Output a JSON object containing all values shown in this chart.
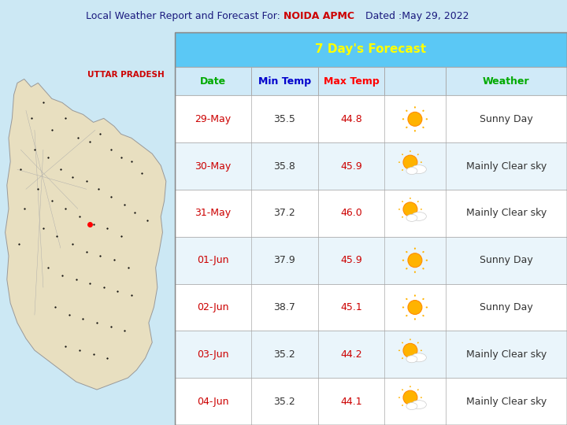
{
  "title_prefix": "Local Weather Report and Forecast For: ",
  "title_location": "NOIDA APMC",
  "title_suffix": "    Dated :May 29, 2022",
  "forecast_header": "7 Day's Forecast",
  "columns": [
    "Date",
    "Min Temp",
    "Max Temp",
    "",
    "Weather"
  ],
  "col_header_colors": [
    "#00aa00",
    "#0000cc",
    "#ff0000",
    "",
    "#00aa00"
  ],
  "rows": [
    {
      "date": "29-May",
      "min_temp": "35.5",
      "max_temp": "44.8",
      "weather": "Sunny Day",
      "icon_type": "sunny"
    },
    {
      "date": "30-May",
      "min_temp": "35.8",
      "max_temp": "45.9",
      "weather": "Mainly Clear sky",
      "icon_type": "partly_cloudy"
    },
    {
      "date": "31-May",
      "min_temp": "37.2",
      "max_temp": "46.0",
      "weather": "Mainly Clear sky",
      "icon_type": "partly_cloudy"
    },
    {
      "date": "01-Jun",
      "min_temp": "37.9",
      "max_temp": "45.9",
      "weather": "Sunny Day",
      "icon_type": "sunny"
    },
    {
      "date": "02-Jun",
      "min_temp": "38.7",
      "max_temp": "45.1",
      "weather": "Sunny Day",
      "icon_type": "sunny"
    },
    {
      "date": "03-Jun",
      "min_temp": "35.2",
      "max_temp": "44.2",
      "weather": "Mainly Clear sky",
      "icon_type": "partly_cloudy"
    },
    {
      "date": "04-Jun",
      "min_temp": "35.2",
      "max_temp": "44.1",
      "weather": "Mainly Clear sky",
      "icon_type": "partly_cloudy"
    }
  ],
  "bg_color": "#cce8f4",
  "table_header_bg": "#5bc8f5",
  "table_col_header_bg": "#d0eaf8",
  "row_bg_white": "#ffffff",
  "row_bg_light": "#eaf5fb",
  "date_color": "#cc0000",
  "max_temp_color": "#cc0000",
  "header_text_color": "#ffff00",
  "map_label": "UTTAR PRADESH",
  "map_label_color": "#cc0000",
  "title_color": "#1a1a7e",
  "title_red": "#cc0000"
}
